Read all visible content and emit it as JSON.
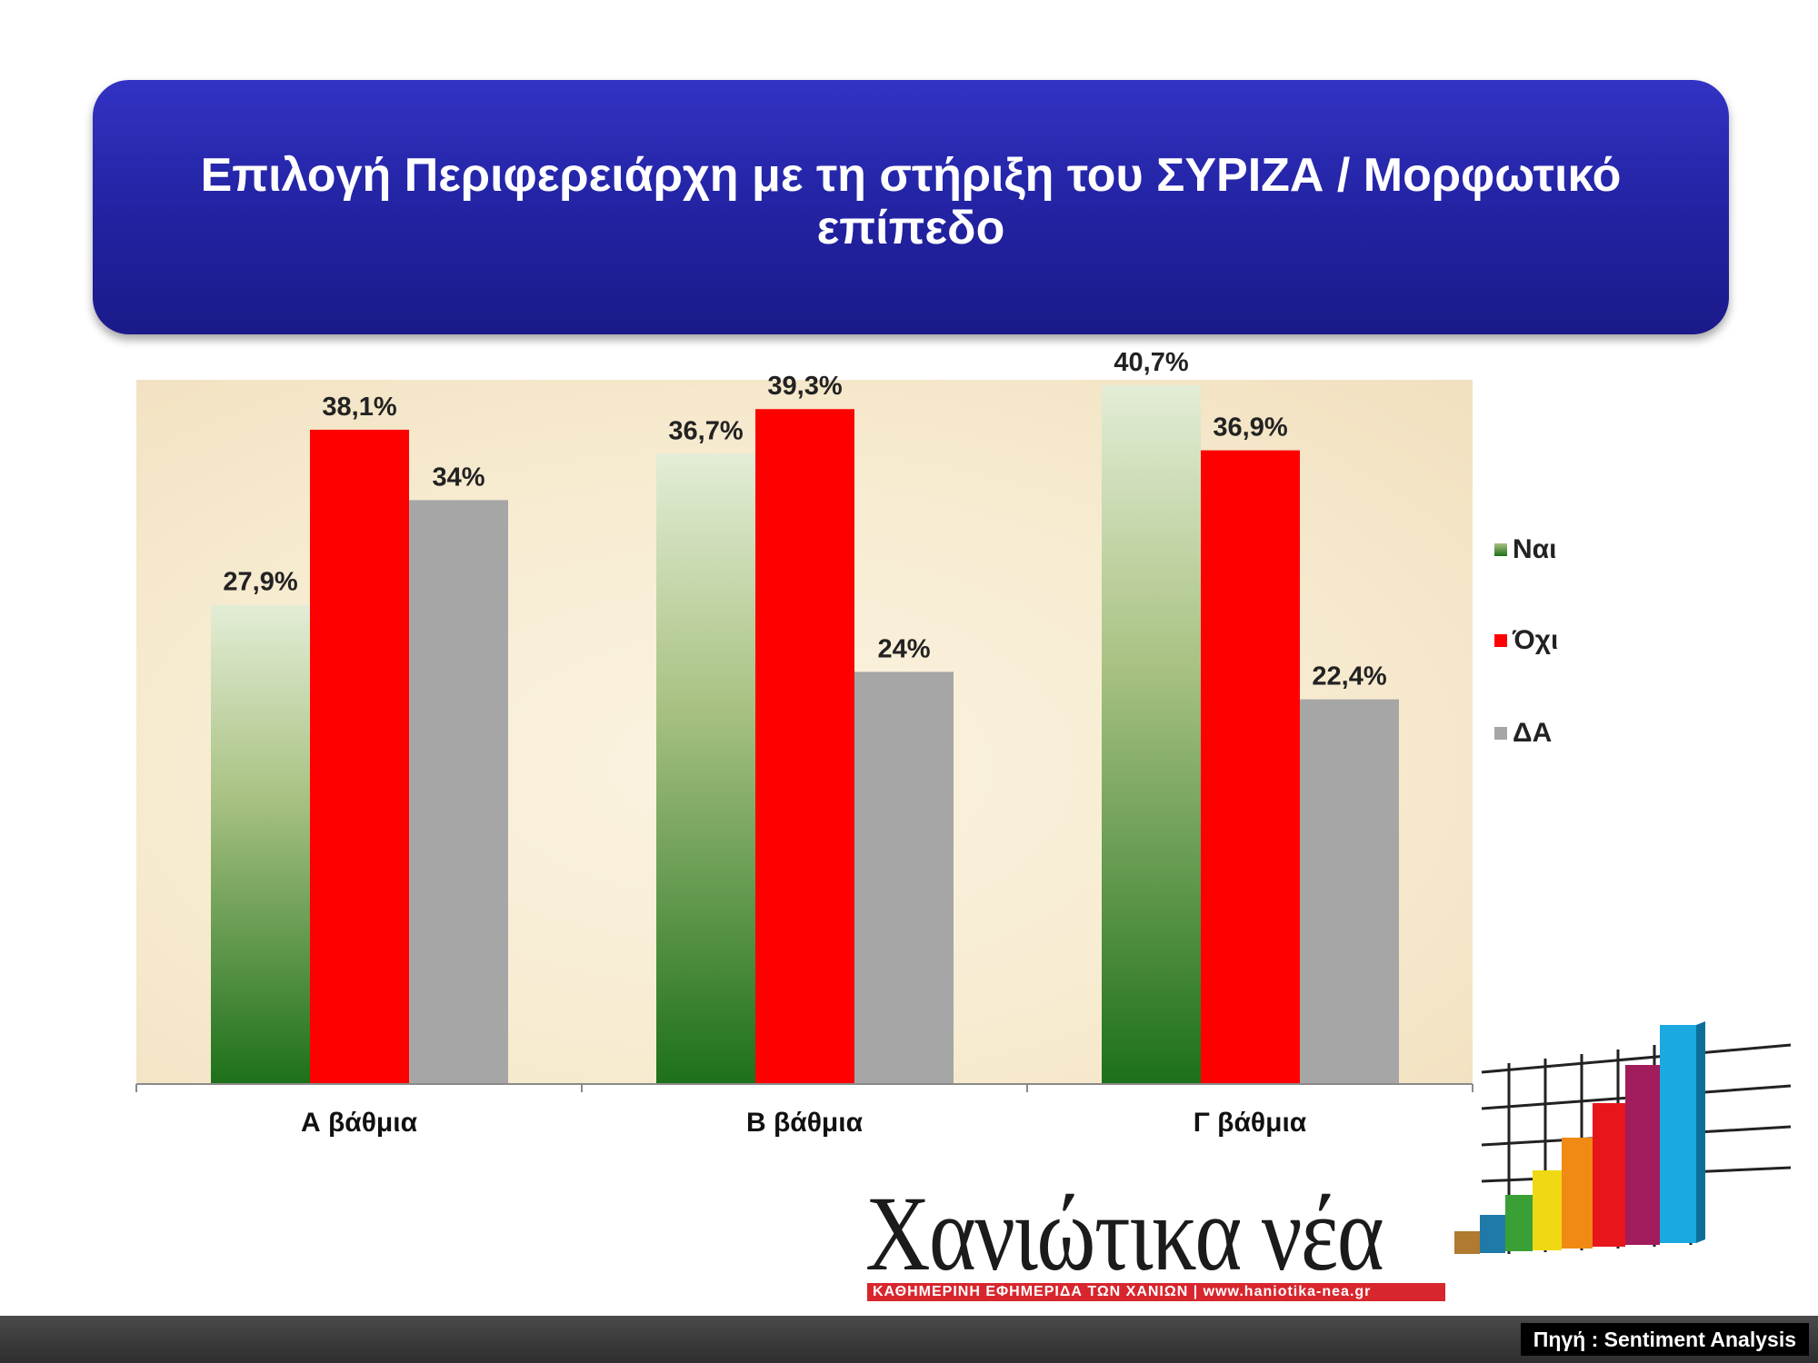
{
  "title": "Επιλογή Περιφερειάρχη με τη στήριξη του ΣΥΡΙΖΑ / Μορφωτικό επίπεδο",
  "chart_data": {
    "type": "bar",
    "categories": [
      "Α βάθμια",
      "Β βάθμια",
      "Γ βάθμια"
    ],
    "series": [
      {
        "name": "Ναι",
        "values": [
          27.9,
          36.7,
          40.7
        ],
        "labels": [
          "27,9%",
          "36,7%",
          "40,7%"
        ],
        "color": "#2e7d32"
      },
      {
        "name": "Όχι",
        "values": [
          38.1,
          39.3,
          36.9
        ],
        "labels": [
          "38,1%",
          "39,3%",
          "36,9%"
        ],
        "color": "#ff0000"
      },
      {
        "name": "ΔΑ",
        "values": [
          34,
          24,
          22.4
        ],
        "labels": [
          "34%",
          "24%",
          "22,4%"
        ],
        "color": "#a6a6a6"
      }
    ],
    "ylim": [
      0,
      45
    ],
    "grid": false,
    "legend": "right",
    "xlabel": "",
    "ylabel": ""
  },
  "logo": {
    "name": "Χανιώτικα νέα",
    "tagline": "ΚΑΘΗΜΕΡΙΝΗ ΕΦΗΜΕΡΙΔΑ ΤΩΝ ΧΑΝΙΩΝ   |   www.haniotika-nea.gr"
  },
  "source": "Πηγή : Sentiment Analysis"
}
